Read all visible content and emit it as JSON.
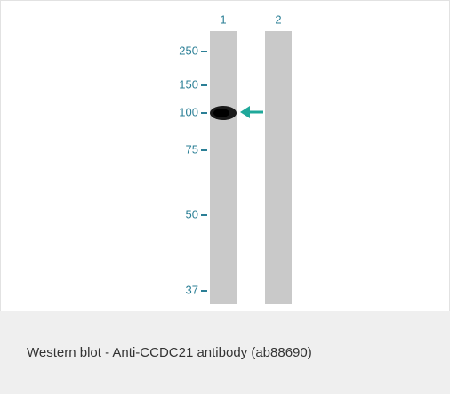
{
  "blot": {
    "lanes": [
      "1",
      "2"
    ],
    "markers": [
      "250",
      "150",
      "100",
      "75",
      "50",
      "37"
    ]
  },
  "caption": "Western blot - Anti-CCDC21 antibody (ab88690)"
}
